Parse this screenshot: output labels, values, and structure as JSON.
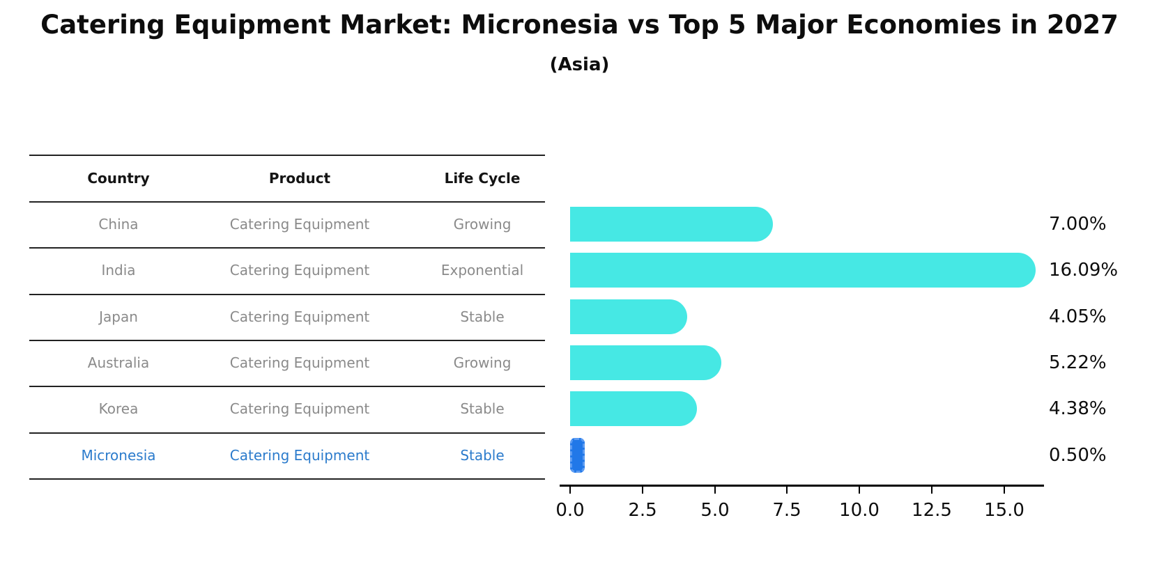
{
  "title": "Catering Equipment Market: Micronesia vs Top 5 Major Economies in 2027",
  "subtitle": "(Asia)",
  "table": {
    "headers": [
      "Country",
      "Product",
      "Life Cycle"
    ],
    "rows": [
      {
        "country": "China",
        "product": "Catering Equipment",
        "life_cycle": "Growing"
      },
      {
        "country": "India",
        "product": "Catering Equipment",
        "life_cycle": "Exponential"
      },
      {
        "country": "Japan",
        "product": "Catering Equipment",
        "life_cycle": "Stable"
      },
      {
        "country": "Australia",
        "product": "Catering Equipment",
        "life_cycle": "Growing"
      },
      {
        "country": "Korea",
        "product": "Catering Equipment",
        "life_cycle": "Stable"
      },
      {
        "country": "Micronesia",
        "product": "Catering Equipment",
        "life_cycle": "Stable"
      }
    ],
    "highlighted_row": "Micronesia"
  },
  "chart_data": {
    "type": "bar",
    "orientation": "horizontal",
    "title": "Catering Equipment Market: Micronesia vs Top 5 Major Economies in 2027 (Asia)",
    "categories": [
      "China",
      "India",
      "Japan",
      "Australia",
      "Korea",
      "Micronesia"
    ],
    "values": [
      7.0,
      16.09,
      4.05,
      5.22,
      4.38,
      0.5
    ],
    "value_labels": [
      "7.00%",
      "16.09%",
      "4.05%",
      "5.22%",
      "4.38%",
      "0.50%"
    ],
    "x_ticks": [
      "0.0",
      "2.5",
      "5.0",
      "7.5",
      "10.0",
      "12.5",
      "15.0"
    ],
    "x_tick_values": [
      0,
      2.5,
      5,
      7.5,
      10,
      12.5,
      15
    ],
    "xlim": [
      0,
      16.75
    ],
    "grid": false,
    "legend": "none",
    "highlight_category": "Micronesia",
    "xlabel": "",
    "ylabel": ""
  },
  "colors": {
    "bar-cyan": "#46E8E4",
    "bar-blue": "#2178E8",
    "text-highlight-blue": "#2B7BCC",
    "text-gray": "#8A8A8A",
    "text-black": "#141414",
    "line-color": "#222222"
  }
}
